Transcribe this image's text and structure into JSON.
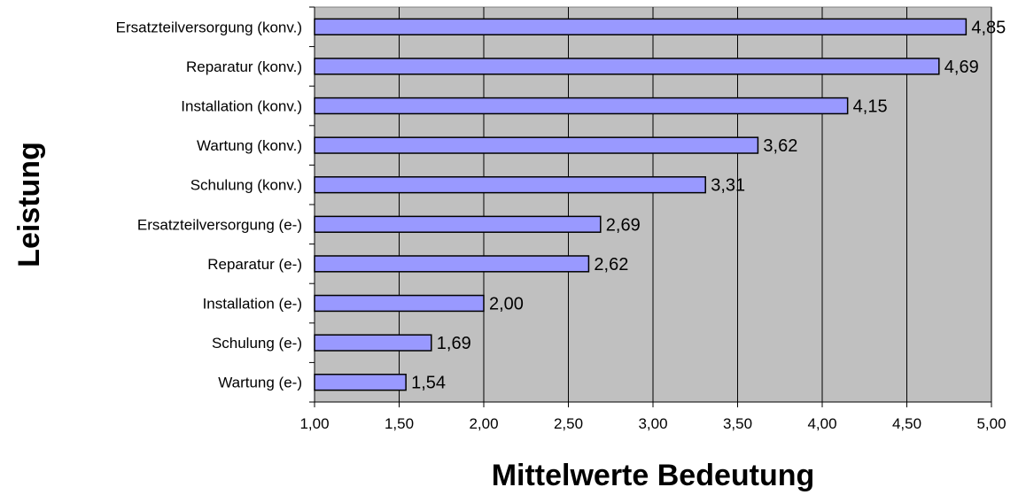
{
  "chart_data": {
    "type": "bar",
    "orientation": "horizontal",
    "title": "",
    "xlabel": "Mittelwerte Bedeutung",
    "ylabel": "Leistung",
    "xlim": [
      1.0,
      5.0
    ],
    "x_ticks": [
      "1,00",
      "1,50",
      "2,00",
      "2,50",
      "3,00",
      "3,50",
      "4,00",
      "4,50",
      "5,00"
    ],
    "x_tick_values": [
      1.0,
      1.5,
      2.0,
      2.5,
      3.0,
      3.5,
      4.0,
      4.5,
      5.0
    ],
    "grid": true,
    "legend": "none",
    "categories": [
      "Ersatzteilversorgung (konv.)",
      "Reparatur (konv.)",
      "Installation (konv.)",
      "Wartung (konv.)",
      "Schulung (konv.)",
      "Ersatzteilversorgung (e-)",
      "Reparatur (e-)",
      "Installation (e-)",
      "Schulung (e-)",
      "Wartung (e-)"
    ],
    "values": [
      4.85,
      4.69,
      4.15,
      3.62,
      3.31,
      2.69,
      2.62,
      2.0,
      1.69,
      1.54
    ],
    "value_labels": [
      "4,85",
      "4,69",
      "4,15",
      "3,62",
      "3,31",
      "2,69",
      "2,62",
      "2,00",
      "1,69",
      "1,54"
    ],
    "colors": {
      "bar_fill": "#9999FF",
      "bar_stroke": "#000000",
      "plot_background": "#C0C0C0",
      "gridline": "#000000"
    }
  }
}
